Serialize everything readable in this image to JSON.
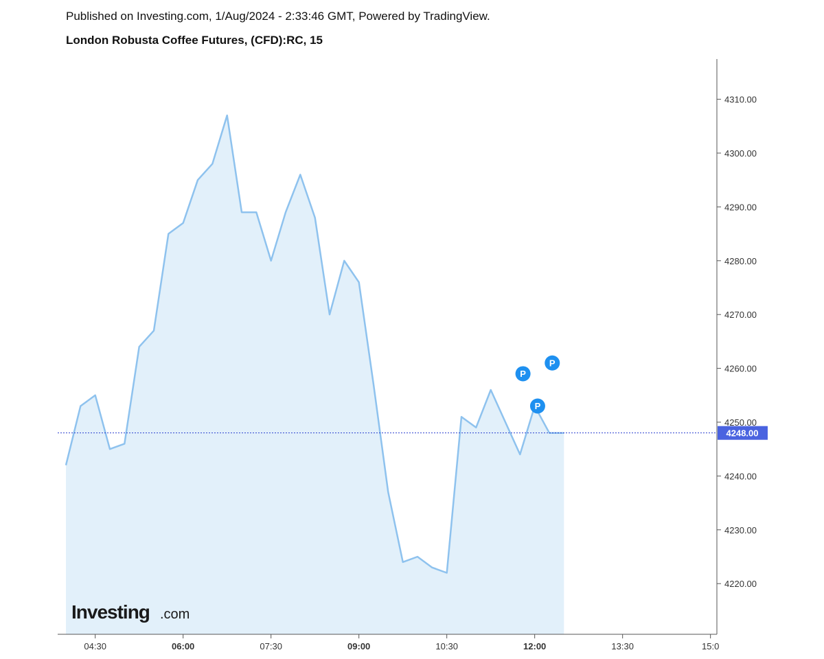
{
  "header": {
    "published": "Published on Investing.com, 1/Aug/2024 - 2:33:46 GMT, Powered by TradingView.",
    "title": "London Robusta Coffee Futures, (CFD):RC, 15"
  },
  "brand": {
    "name": "Investing",
    "suffix": ".com"
  },
  "colors": {
    "line": "#8ec2ee",
    "fill": "#e2f0fa",
    "last_price_line": "#2a3fd0",
    "last_price_badge": "#4a63e0",
    "marker": "#1e90f0"
  },
  "chart_data": {
    "type": "area",
    "title": "London Robusta Coffee Futures, (CFD):RC, 15",
    "xlabel": "",
    "ylabel": "",
    "x_ticks": [
      {
        "label": "04:30",
        "t": 270,
        "bold": false
      },
      {
        "label": "06:00",
        "t": 360,
        "bold": true
      },
      {
        "label": "07:30",
        "t": 450,
        "bold": false
      },
      {
        "label": "09:00",
        "t": 540,
        "bold": true
      },
      {
        "label": "10:30",
        "t": 630,
        "bold": false
      },
      {
        "label": "12:00",
        "t": 720,
        "bold": true
      },
      {
        "label": "13:30",
        "t": 810,
        "bold": false
      },
      {
        "label": "15:0",
        "t": 900,
        "bold": false
      }
    ],
    "y_ticks": [
      "4220.00",
      "4230.00",
      "4240.00",
      "4250.00",
      "4260.00",
      "4270.00",
      "4280.00",
      "4290.00",
      "4300.00",
      "4310.00"
    ],
    "ylim": [
      4212,
      4318
    ],
    "series": [
      {
        "x": [
          240,
          255,
          270,
          285,
          300,
          315,
          330,
          345,
          360,
          375,
          390,
          405,
          420,
          435,
          450,
          465,
          480,
          495,
          510,
          525,
          540,
          555,
          570,
          585,
          600,
          615,
          630,
          645,
          660,
          675,
          690,
          705,
          720,
          735,
          750
        ],
        "y": [
          4242,
          4253,
          4255,
          4245,
          4246,
          4264,
          4267,
          4285,
          4287,
          4295,
          4298,
          4307,
          4289,
          4289,
          4280,
          4289,
          4296,
          4288,
          4270,
          4280,
          4276,
          4257,
          4237,
          4224,
          4225,
          4223,
          4222,
          4251,
          4249,
          4256,
          4250,
          4244,
          4253,
          4248,
          4248
        ]
      }
    ],
    "last_price": 4248,
    "last_price_label": "4248.00",
    "markers": [
      {
        "label": "P",
        "t": 708,
        "v": 4259
      },
      {
        "label": "P",
        "t": 738,
        "v": 4261
      },
      {
        "label": "P",
        "t": 723,
        "v": 4253
      }
    ],
    "grid": false
  }
}
